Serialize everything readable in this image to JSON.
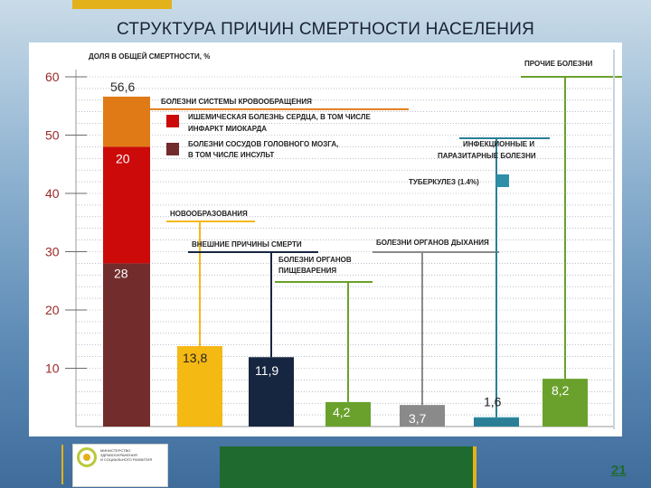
{
  "slide": {
    "title": "СТРУКТУРА ПРИЧИН СМЕРТНОСТИ НАСЕЛЕНИЯ",
    "page_number": "21",
    "logo_lines": [
      "МИНИСТЕРСТВО",
      "ЗДРАВООХРАНЕНИЯ",
      "И СОЦИАЛЬНОГО РАЗВИТИЯ"
    ]
  },
  "colors": {
    "blood": "#e07a17",
    "ischemic": "#cc0a0a",
    "stroke": "#722c2c",
    "neoplasm": "#f5b914",
    "external": "#172640",
    "digestive": "#6aa12c",
    "respiratory": "#8a8a8a",
    "infectious": "#2f8ea8",
    "infectious_dark": "#2a7f96",
    "other": "#6aa12c",
    "grid": "#8f98b0"
  },
  "chart_data": {
    "type": "bar",
    "ylabel": "Доля в общей смертности, %",
    "ylim": [
      0,
      60
    ],
    "y_ticks": [
      "10",
      "20",
      "30",
      "40",
      "50",
      "60"
    ],
    "grid": true,
    "bars": [
      {
        "key": "circulatory",
        "total": 56.6,
        "label": "56,6",
        "caption": "Болезни системы кровообращения",
        "segments": [
          {
            "value": 28,
            "label": "28",
            "caption": "Болезни сосудов головного мозга, в том числе инсульт",
            "color_key": "stroke"
          },
          {
            "value": 20,
            "label": "20",
            "caption": "Ишемическая болезнь сердца, в том числе инфаркт миокарда",
            "color_key": "ischemic"
          },
          {
            "value": 8.6,
            "label": "",
            "caption": "",
            "color_key": "blood"
          }
        ]
      },
      {
        "key": "neoplasms",
        "value": 13.8,
        "label": "13,8",
        "caption": "Новообразования",
        "color_key": "neoplasm"
      },
      {
        "key": "external",
        "value": 11.9,
        "label": "11,9",
        "caption": "Внешние причины смерти",
        "color_key": "external"
      },
      {
        "key": "digestive",
        "value": 4.2,
        "label": "4,2",
        "caption": "Болезни органов пищеварения",
        "color_key": "digestive"
      },
      {
        "key": "respiratory",
        "value": 3.7,
        "label": "3,7",
        "caption": "Болезни органов дыхания",
        "color_key": "respiratory"
      },
      {
        "key": "infectious",
        "value": 1.6,
        "label": "1,6",
        "caption": "Инфекционные и паразитарные болезни",
        "sub_value": 1.4,
        "sub_caption": "Туберкулез (1.4%)",
        "color_key": "infectious"
      },
      {
        "key": "other",
        "value": 8.2,
        "label": "8,2",
        "caption": "Прочие болезни",
        "color_key": "other"
      }
    ]
  }
}
